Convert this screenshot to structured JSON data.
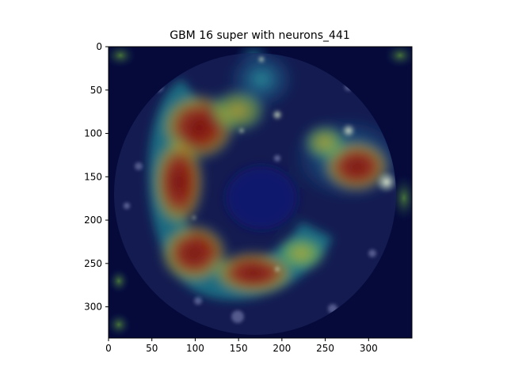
{
  "title": "GBM 16 super with neurons_441",
  "axes": {
    "x_ticks": [
      "0",
      "50",
      "100",
      "150",
      "200",
      "250",
      "300"
    ],
    "y_ticks": [
      "0",
      "50",
      "100",
      "150",
      "200",
      "250",
      "300"
    ],
    "x_range": [
      0,
      350
    ],
    "y_range": [
      0,
      336
    ]
  },
  "image": {
    "description_colormap": "jet",
    "background": "#000033"
  }
}
